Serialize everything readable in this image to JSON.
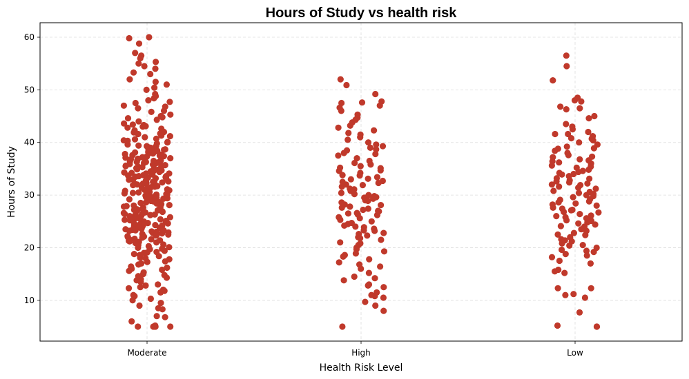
{
  "chart_data": {
    "type": "scatter",
    "title": "Hours of Study vs health risk",
    "xlabel": "Health Risk Level",
    "ylabel": "Hours of Study",
    "categories": [
      "Moderate",
      "High",
      "Low"
    ],
    "ylim": [
      2.25,
      62.75
    ],
    "yticks": [
      10,
      20,
      30,
      40,
      50,
      60
    ],
    "grid": true,
    "point_color": "#c0392b",
    "series": [
      {
        "category": "Moderate",
        "values": [
          5,
          5,
          5,
          5,
          5,
          5.2,
          6,
          6.8,
          7,
          8.3,
          8.5,
          9,
          9.5,
          10,
          10.3,
          10.8,
          11,
          11.5,
          11.8,
          12,
          12.3,
          12.8,
          13,
          13.5,
          13.8,
          14,
          14.3,
          14.8,
          15,
          15.3,
          15.8,
          16,
          16.4,
          16.8,
          17,
          17.3,
          17.8,
          18,
          18.4,
          18.8,
          19,
          19.4,
          19.8,
          20,
          20.3,
          20.6,
          21,
          21.3,
          21.6,
          22,
          22.3,
          22.6,
          23,
          23.3,
          23.6,
          24,
          24.3,
          24.6,
          25,
          25.3,
          25.6,
          26,
          26.3,
          26.6,
          27,
          27.3,
          27.6,
          28,
          28.3,
          28.6,
          29,
          29.3,
          29.6,
          30,
          30.3,
          30.6,
          31,
          31.3,
          31.6,
          32,
          32.3,
          32.6,
          33,
          33.3,
          33.6,
          34,
          34.3,
          34.6,
          35,
          35.3,
          35.6,
          36,
          36.3,
          36.6,
          37,
          37.3,
          37.6,
          38,
          38.3,
          38.6,
          39,
          39.3,
          39.6,
          40,
          40.3,
          40.6,
          41,
          41.3,
          41.6,
          42,
          42.3,
          42.6,
          43,
          43.3,
          43.6,
          44,
          44.3,
          44.8,
          45,
          45.3,
          45.8,
          46,
          46.5,
          47,
          47.5,
          48,
          48.4,
          48.8,
          49.2,
          50,
          50.4,
          51,
          51.5,
          52,
          53,
          53.3,
          54,
          54.5,
          55,
          55.3,
          56,
          56.5,
          57,
          58.8,
          59.8,
          60,
          20.1,
          22.4,
          24.7,
          26.9,
          28.2,
          30.5,
          32.8,
          34.1,
          36.4,
          38.7,
          25.5,
          27.8,
          29.1,
          31.4,
          33.7,
          35.9,
          23.2,
          21.6,
          37.5,
          39.8,
          19.2,
          18.1,
          41.9,
          43.1,
          16.2,
          14.6,
          44.6,
          46.8,
          12.5,
          47.7,
          24.1,
          26.2,
          28.9,
          30.9,
          32.1,
          34.8,
          36.9,
          22.7,
          20.8,
          38.2,
          27.1,
          29.7,
          31.8,
          33.2,
          35.1,
          25.2,
          23.8,
          37.8,
          21.2,
          39.3,
          26.7,
          28.5,
          30.1,
          32.5,
          34.5,
          24.4,
          36.1,
          22.1,
          38.9,
          20.5,
          29.4,
          31.1,
          33.9,
          27.4,
          35.7,
          25.9,
          23.5,
          37.2,
          21.9,
          40.1,
          28.1,
          30.8,
          32.2,
          26.1,
          34.2,
          24.9,
          36.7,
          22.9,
          38.4,
          41.2,
          27.7,
          29.9,
          31.6,
          33.4,
          35.4,
          25.4,
          23.1,
          37.9,
          19.7,
          42.8,
          30.2,
          28.7,
          26.4,
          32.7,
          34.9,
          24.2,
          36.2,
          22.5,
          39.1,
          17.4,
          31.9,
          29.2,
          27.2,
          33.1,
          35.2,
          25.7,
          23.9,
          37.4,
          21.4,
          40.7,
          28.4,
          30.4,
          26.8,
          32.4,
          34.4,
          24.6,
          36.8,
          22.2,
          38.1,
          18.6,
          29.6,
          31.2,
          27.9,
          33.6,
          35.8,
          25.1,
          23.4,
          37.1,
          20.9,
          41.7,
          30.7,
          28.8,
          26.2,
          32.9,
          34.7,
          24.8,
          36.5,
          22.8,
          39.4,
          15.6,
          31.5,
          29.8,
          27.5,
          33.8,
          35.5,
          25.8,
          23.7,
          37.7,
          21.7,
          43.4,
          28.9,
          30.1,
          26.5,
          32.3,
          34.1,
          24.3,
          36.3,
          22.4,
          38.6,
          19.1,
          29.5,
          31.7,
          27.3,
          33.5,
          35.6,
          25.3,
          23.3,
          37.3,
          21.1,
          40.4
        ]
      },
      {
        "category": "High",
        "values": [
          5,
          8,
          9,
          9.7,
          10.5,
          10.8,
          11,
          11.5,
          12.5,
          12.8,
          13,
          13.8,
          14.2,
          14.5,
          15.2,
          16,
          16.4,
          16.8,
          17.2,
          17.8,
          18.3,
          18.6,
          19.3,
          20,
          20.5,
          21,
          21.5,
          22,
          22.3,
          22.8,
          23.2,
          23.6,
          24,
          24.5,
          25,
          25.3,
          25.8,
          26.2,
          26.6,
          27,
          27.4,
          27.8,
          28.2,
          28.6,
          29,
          29.5,
          30,
          30.4,
          30.8,
          31.2,
          31.6,
          32,
          32.5,
          33,
          33.4,
          33.8,
          34.2,
          34.7,
          35.2,
          35.8,
          36.5,
          37,
          37.5,
          38,
          38.5,
          39,
          39.6,
          40,
          40.5,
          41,
          41.8,
          42.3,
          42.8,
          43.2,
          43.8,
          44.3,
          44.7,
          45.3,
          46,
          46.6,
          47,
          47.5,
          47.6,
          47.8,
          49.2,
          50.9,
          52,
          26.5,
          28.1,
          29.8,
          31.1,
          32.7,
          24.7,
          27.6,
          30.2,
          33.1,
          35.5,
          22.6,
          25.6,
          28.9,
          31.9,
          34.6,
          23.9,
          26.9,
          29.3,
          32.3,
          36.1,
          21.8,
          24.2,
          27.2,
          30.7,
          33.7,
          37.8,
          20.8,
          19.7,
          38.7,
          39.3,
          41.5,
          18.9,
          26.3,
          29.6,
          23.3,
          35.1
        ]
      },
      {
        "category": "Low",
        "values": [
          5,
          5,
          5.2,
          7.7,
          10.5,
          11,
          11.2,
          12.3,
          12.3,
          15.2,
          15.5,
          15.8,
          17,
          17.5,
          18.2,
          18.5,
          18.8,
          19.2,
          19.6,
          20,
          20.4,
          20.8,
          21.2,
          21.6,
          22,
          22.4,
          22.8,
          23.2,
          23.6,
          24,
          24.4,
          24.8,
          25.2,
          25.6,
          26,
          26.4,
          26.8,
          27.2,
          27.6,
          28,
          28.4,
          28.8,
          29.2,
          29.6,
          30,
          30.4,
          30.8,
          31.2,
          31.6,
          32,
          32.4,
          32.8,
          33.2,
          33.6,
          34,
          34.4,
          34.8,
          35.2,
          35.6,
          36,
          36.4,
          36.8,
          37.2,
          37.6,
          38,
          38.4,
          38.8,
          39.2,
          39.6,
          40,
          40.4,
          40.8,
          41.2,
          41.6,
          42,
          42.5,
          43,
          43.5,
          44.6,
          45,
          46.3,
          46.5,
          46.8,
          47.8,
          48,
          48.5,
          51.8,
          54.5,
          56.5,
          25.1,
          27.4,
          29.1,
          31.4,
          33.1,
          35.4,
          23.5,
          26.1,
          28.6,
          30.6,
          32.6,
          34.6,
          36.6,
          22.5,
          24.6,
          27.1,
          29.8,
          31.9,
          33.9,
          37.3,
          21.4,
          38.9,
          20.5,
          40.7,
          19.4,
          28.2,
          30.2,
          26.7,
          32.2,
          25.8,
          34.2,
          36.2,
          24.1,
          41.6
        ]
      }
    ]
  }
}
